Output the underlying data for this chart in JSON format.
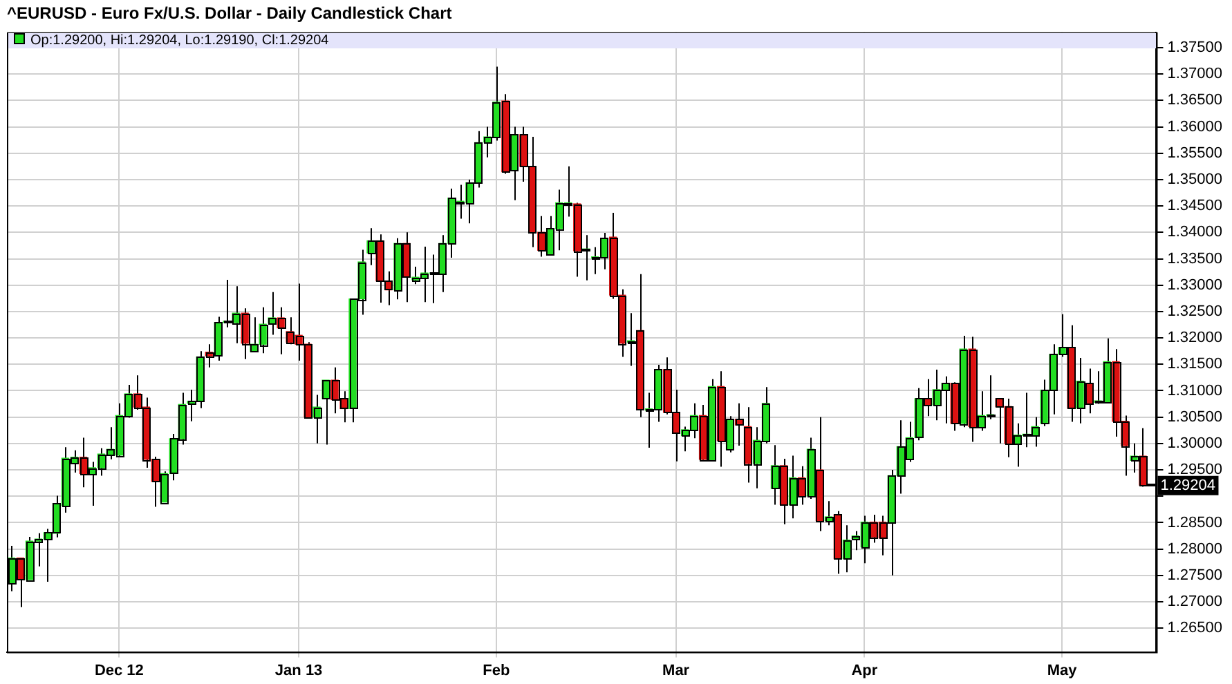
{
  "chart_data": {
    "type": "candlestick",
    "title": "^EURUSD - Euro Fx/U.S. Dollar - Daily Candlestick Chart",
    "annotations": [
      "Op:1.29200, Hi:1.29204, Lo:1.29190, Cl:1.29204",
      {
        "text": "1.29204",
        "y": 1.29204
      }
    ],
    "categories": [
      null,
      null,
      null,
      null,
      null,
      null,
      null,
      null,
      null,
      null,
      null,
      null,
      "Dec 12",
      null,
      null,
      null,
      null,
      null,
      null,
      null,
      null,
      null,
      null,
      null,
      null,
      null,
      null,
      null,
      null,
      null,
      null,
      null,
      "Jan 13",
      null,
      null,
      null,
      null,
      null,
      null,
      null,
      null,
      null,
      null,
      null,
      null,
      null,
      null,
      null,
      null,
      null,
      null,
      null,
      null,
      null,
      "Feb",
      null,
      null,
      null,
      null,
      null,
      null,
      null,
      null,
      null,
      null,
      null,
      null,
      null,
      null,
      null,
      null,
      null,
      null,
      null,
      "Mar",
      null,
      null,
      null,
      null,
      null,
      null,
      null,
      null,
      null,
      null,
      null,
      null,
      null,
      null,
      null,
      null,
      null,
      null,
      null,
      null,
      "Apr",
      null,
      null,
      null,
      null,
      null,
      null,
      null,
      null,
      null,
      null,
      null,
      null,
      null,
      null,
      null,
      null,
      null,
      null,
      null,
      null,
      null,
      "May",
      null,
      null,
      null,
      null,
      null,
      null,
      null,
      null,
      null,
      null
    ],
    "ohlc": [
      [
        1.2736,
        1.2806,
        1.272,
        1.2783
      ],
      [
        1.2783,
        1.2783,
        1.269,
        1.2744
      ],
      [
        1.2742,
        1.2823,
        1.2742,
        1.2815
      ],
      [
        1.2815,
        1.283,
        1.2767,
        1.2819
      ],
      [
        1.2818,
        1.2838,
        1.2738,
        1.2831
      ],
      [
        1.283,
        1.2901,
        1.2822,
        1.2886
      ],
      [
        1.2882,
        1.2993,
        1.2869,
        1.2972
      ],
      [
        1.2963,
        1.2987,
        1.2945,
        1.2974
      ],
      [
        1.2974,
        1.3011,
        1.2917,
        1.2943
      ],
      [
        1.2943,
        1.2965,
        1.2882,
        1.2954
      ],
      [
        1.2954,
        1.2991,
        1.2939,
        1.298
      ],
      [
        1.2978,
        1.3031,
        1.297,
        1.2989
      ],
      [
        1.2978,
        1.3076,
        1.2974,
        1.3053
      ],
      [
        1.3053,
        1.3111,
        1.3049,
        1.3094
      ],
      [
        1.3094,
        1.3129,
        1.3064,
        1.3069
      ],
      [
        1.3069,
        1.3087,
        1.2954,
        1.297
      ],
      [
        1.297,
        1.2975,
        1.288,
        1.2928
      ],
      [
        1.2889,
        1.2947,
        1.2889,
        1.2943
      ],
      [
        1.2943,
        1.3018,
        1.293,
        1.3009
      ],
      [
        1.3009,
        1.3096,
        1.2998,
        1.3074
      ],
      [
        1.3076,
        1.3102,
        1.3042,
        1.308
      ],
      [
        1.308,
        1.3175,
        1.3067,
        1.3164
      ],
      [
        1.3173,
        1.3188,
        1.3144,
        1.3166
      ],
      [
        1.3166,
        1.324,
        1.3157,
        1.3229
      ],
      [
        1.3229,
        1.331,
        1.322,
        1.3232
      ],
      [
        1.3229,
        1.3298,
        1.319,
        1.3247
      ],
      [
        1.3247,
        1.3256,
        1.316,
        1.319
      ],
      [
        1.3174,
        1.3239,
        1.3174,
        1.3188
      ],
      [
        1.3188,
        1.3258,
        1.3171,
        1.3226
      ],
      [
        1.3228,
        1.3287,
        1.3206,
        1.3238
      ],
      [
        1.3238,
        1.3258,
        1.3169,
        1.3219
      ],
      [
        1.3212,
        1.3239,
        1.3188,
        1.3192
      ],
      [
        1.3205,
        1.3303,
        1.3157,
        1.3188
      ],
      [
        1.3188,
        1.3192,
        1.3048,
        1.305
      ],
      [
        1.305,
        1.3092,
        1.3,
        1.3069
      ],
      [
        1.3085,
        1.312,
        1.2998,
        1.312
      ],
      [
        1.312,
        1.3144,
        1.3057,
        1.3083
      ],
      [
        1.3085,
        1.3099,
        1.304,
        1.3066
      ],
      [
        1.3066,
        1.3274,
        1.304,
        1.3274
      ],
      [
        1.3274,
        1.3367,
        1.3244,
        1.3344
      ],
      [
        1.3361,
        1.3408,
        1.3338,
        1.3384
      ],
      [
        1.3384,
        1.3396,
        1.3267,
        1.3308
      ],
      [
        1.3308,
        1.3326,
        1.3262,
        1.3291
      ],
      [
        1.3291,
        1.3389,
        1.3273,
        1.3379
      ],
      [
        1.3379,
        1.34,
        1.3268,
        1.3315
      ],
      [
        1.331,
        1.3335,
        1.3302,
        1.3315
      ],
      [
        1.3315,
        1.3373,
        1.3268,
        1.3323
      ],
      [
        1.3321,
        1.3358,
        1.3266,
        1.3323
      ],
      [
        1.3321,
        1.3395,
        1.3287,
        1.3379
      ],
      [
        1.3379,
        1.3483,
        1.3352,
        1.3465
      ],
      [
        1.3456,
        1.349,
        1.3426,
        1.3459
      ],
      [
        1.3456,
        1.35,
        1.3417,
        1.3494
      ],
      [
        1.3494,
        1.3592,
        1.3485,
        1.357
      ],
      [
        1.3571,
        1.36,
        1.3542,
        1.3581
      ],
      [
        1.3581,
        1.3714,
        1.3574,
        1.3647
      ],
      [
        1.3649,
        1.3662,
        1.3511,
        1.3515
      ],
      [
        1.3518,
        1.36,
        1.3461,
        1.3585
      ],
      [
        1.3585,
        1.36,
        1.3496,
        1.3525
      ],
      [
        1.3525,
        1.3581,
        1.3372,
        1.34
      ],
      [
        1.34,
        1.3431,
        1.3354,
        1.3366
      ],
      [
        1.3357,
        1.3431,
        1.3357,
        1.3407
      ],
      [
        1.3407,
        1.3481,
        1.3366,
        1.3456
      ],
      [
        1.3453,
        1.3525,
        1.343,
        1.3456
      ],
      [
        1.3454,
        1.3456,
        1.3316,
        1.3365
      ],
      [
        1.3366,
        1.3395,
        1.3309,
        1.3367
      ],
      [
        1.3351,
        1.3372,
        1.3321,
        1.3352
      ],
      [
        1.3352,
        1.3399,
        1.333,
        1.3389
      ],
      [
        1.3391,
        1.3437,
        1.3274,
        1.3281
      ],
      [
        1.3281,
        1.3292,
        1.3164,
        1.319
      ],
      [
        1.3192,
        1.3247,
        1.3147,
        1.3192
      ],
      [
        1.3214,
        1.3321,
        1.305,
        1.3064
      ],
      [
        1.3063,
        1.3096,
        1.2992,
        1.3064
      ],
      [
        1.3064,
        1.3149,
        1.3041,
        1.314
      ],
      [
        1.314,
        1.3163,
        1.3055,
        1.3059
      ],
      [
        1.3059,
        1.3102,
        1.2966,
        1.3019
      ],
      [
        1.3015,
        1.3032,
        1.2985,
        1.3026
      ],
      [
        1.3026,
        1.3076,
        1.301,
        1.3053
      ],
      [
        1.3053,
        1.3073,
        1.2968,
        1.297
      ],
      [
        1.2968,
        1.3122,
        1.2968,
        1.3108
      ],
      [
        1.3108,
        1.3137,
        1.2956,
        1.3006
      ],
      [
        1.2989,
        1.3052,
        1.2983,
        1.3046
      ],
      [
        1.3046,
        1.3076,
        1.2996,
        1.3035
      ],
      [
        1.3032,
        1.3069,
        1.2926,
        1.2962
      ],
      [
        1.2962,
        1.3031,
        1.2915,
        1.3006
      ],
      [
        1.3006,
        1.3107,
        1.3,
        1.3076
      ],
      [
        1.2915,
        1.2997,
        1.2884,
        1.2958
      ],
      [
        1.2958,
        1.2971,
        1.2847,
        1.2884
      ],
      [
        1.2884,
        1.2977,
        1.2858,
        1.2935
      ],
      [
        1.2935,
        1.2957,
        1.2884,
        1.2901
      ],
      [
        1.2901,
        1.3011,
        1.2895,
        1.2989
      ],
      [
        1.295,
        1.305,
        1.2834,
        1.2854
      ],
      [
        1.2854,
        1.2891,
        1.2845,
        1.2861
      ],
      [
        1.2865,
        1.2872,
        1.2753,
        1.2782
      ],
      [
        1.2782,
        1.2845,
        1.2756,
        1.2817
      ],
      [
        1.282,
        1.2834,
        1.2798,
        1.2825
      ],
      [
        1.2804,
        1.2863,
        1.2773,
        1.2851
      ],
      [
        1.2851,
        1.2865,
        1.2812,
        1.2823
      ],
      [
        1.2851,
        1.2863,
        1.2788,
        1.2821
      ],
      [
        1.2849,
        1.295,
        1.275,
        1.2939
      ],
      [
        1.2939,
        1.3044,
        1.2905,
        1.2994
      ],
      [
        1.2971,
        1.3041,
        1.2965,
        1.3011
      ],
      [
        1.3011,
        1.3105,
        1.3006,
        1.3085
      ],
      [
        1.3085,
        1.3122,
        1.3052,
        1.3073
      ],
      [
        1.3073,
        1.314,
        1.3044,
        1.3102
      ],
      [
        1.3102,
        1.3127,
        1.3038,
        1.3114
      ],
      [
        1.3114,
        1.3116,
        1.3024,
        1.3038
      ],
      [
        1.3038,
        1.3204,
        1.3031,
        1.3179
      ],
      [
        1.3179,
        1.3202,
        1.3003,
        1.3032
      ],
      [
        1.3032,
        1.3099,
        1.3024,
        1.3053
      ],
      [
        1.3052,
        1.3129,
        1.3046,
        1.3053
      ],
      [
        1.3085,
        1.3085,
        1.3,
        1.307
      ],
      [
        1.307,
        1.3085,
        1.2974,
        1.3
      ],
      [
        1.3,
        1.3038,
        1.2956,
        1.3016
      ],
      [
        1.3015,
        1.3096,
        1.2993,
        1.3016
      ],
      [
        1.3016,
        1.305,
        1.2994,
        1.3032
      ],
      [
        1.3038,
        1.3121,
        1.3033,
        1.3101
      ],
      [
        1.3101,
        1.3188,
        1.3055,
        1.3169
      ],
      [
        1.3169,
        1.3245,
        1.3164,
        1.3182
      ],
      [
        1.3182,
        1.3224,
        1.3041,
        1.3067
      ],
      [
        1.3067,
        1.3162,
        1.3038,
        1.3118
      ],
      [
        1.3114,
        1.3142,
        1.3057,
        1.3076
      ],
      [
        1.3078,
        1.3137,
        1.3075,
        1.3079
      ],
      [
        1.3079,
        1.3199,
        1.3079,
        1.3155
      ],
      [
        1.3155,
        1.3179,
        1.3013,
        1.3042
      ],
      [
        1.3042,
        1.3053,
        1.2939,
        1.2996
      ],
      [
        1.2968,
        1.3,
        1.2945,
        1.2976
      ],
      [
        1.2976,
        1.3029,
        1.2918,
        1.2921
      ],
      [
        1.292,
        1.29204,
        1.2919,
        1.29204
      ]
    ],
    "colors": [
      "#22dd22",
      "#dd1111",
      "#22dd22",
      "#22dd22",
      "#22dd22",
      "#22dd22",
      "#22dd22",
      "#22dd22",
      "#dd1111",
      "#22dd22",
      "#22dd22",
      "#22dd22",
      "#22dd22",
      "#22dd22",
      "#dd1111",
      "#dd1111",
      "#dd1111",
      "#22dd22",
      "#22dd22",
      "#22dd22",
      "#22dd22",
      "#22dd22",
      "#dd1111",
      "#22dd22",
      "#22dd22",
      "#22dd22",
      "#dd1111",
      "#22dd22",
      "#22dd22",
      "#22dd22",
      "#dd1111",
      "#dd1111",
      "#dd1111",
      "#dd1111",
      "#22dd22",
      "#22dd22",
      "#dd1111",
      "#dd1111",
      "#22dd22",
      "#22dd22",
      "#22dd22",
      "#dd1111",
      "#dd1111",
      "#22dd22",
      "#dd1111",
      "#22dd22",
      "#22dd22",
      "#22dd22",
      "#22dd22",
      "#22dd22",
      "#22dd22",
      "#22dd22",
      "#22dd22",
      "#22dd22",
      "#22dd22",
      "#dd1111",
      "#22dd22",
      "#dd1111",
      "#dd1111",
      "#dd1111",
      "#22dd22",
      "#22dd22",
      "#22dd22",
      "#dd1111",
      "#22dd22",
      "#22dd22",
      "#22dd22",
      "#dd1111",
      "#dd1111",
      "#22dd22",
      "#dd1111",
      "#22dd22",
      "#22dd22",
      "#dd1111",
      "#dd1111",
      "#22dd22",
      "#22dd22",
      "#dd1111",
      "#22dd22",
      "#dd1111",
      "#22dd22",
      "#dd1111",
      "#dd1111",
      "#22dd22",
      "#22dd22",
      "#22dd22",
      "#dd1111",
      "#22dd22",
      "#dd1111",
      "#22dd22",
      "#dd1111",
      "#22dd22",
      "#dd1111",
      "#22dd22",
      "#22dd22",
      "#22dd22",
      "#dd1111",
      "#dd1111",
      "#22dd22",
      "#22dd22",
      "#22dd22",
      "#22dd22",
      "#dd1111",
      "#22dd22",
      "#22dd22",
      "#dd1111",
      "#22dd22",
      "#dd1111",
      "#22dd22",
      "#22dd22",
      "#dd1111",
      "#dd1111",
      "#22dd22",
      "#22dd22",
      "#22dd22",
      "#22dd22",
      "#22dd22",
      "#22dd22",
      "#dd1111",
      "#22dd22",
      "#dd1111",
      "#22dd22",
      "#22dd22",
      "#dd1111",
      "#dd1111",
      "#22dd22",
      "#dd1111",
      "#22dd22"
    ],
    "ylim": [
      1.2605,
      1.3779
    ],
    "yticks": [
      {
        "value": 1.265,
        "label": "1.26500"
      },
      {
        "value": 1.27,
        "label": "1.27000"
      },
      {
        "value": 1.275,
        "label": "1.27500"
      },
      {
        "value": 1.28,
        "label": "1.28000"
      },
      {
        "value": 1.285,
        "label": "1.28500"
      },
      {
        "value": 1.29,
        "label": null
      },
      {
        "value": 1.295,
        "label": "1.29500"
      },
      {
        "value": 1.3,
        "label": "1.30000"
      },
      {
        "value": 1.305,
        "label": "1.30500"
      },
      {
        "value": 1.31,
        "label": "1.31000"
      },
      {
        "value": 1.315,
        "label": "1.31500"
      },
      {
        "value": 1.32,
        "label": "1.32000"
      },
      {
        "value": 1.325,
        "label": "1.32500"
      },
      {
        "value": 1.33,
        "label": "1.33000"
      },
      {
        "value": 1.335,
        "label": "1.33500"
      },
      {
        "value": 1.34,
        "label": "1.34000"
      },
      {
        "value": 1.345,
        "label": "1.34500"
      },
      {
        "value": 1.35,
        "label": "1.35000"
      },
      {
        "value": 1.355,
        "label": "1.35500"
      },
      {
        "value": 1.36,
        "label": "1.36000"
      },
      {
        "value": 1.365,
        "label": "1.36500"
      },
      {
        "value": 1.37,
        "label": "1.37000"
      },
      {
        "value": 1.375,
        "label": "1.37500"
      }
    ],
    "grid": true,
    "legend": false
  }
}
